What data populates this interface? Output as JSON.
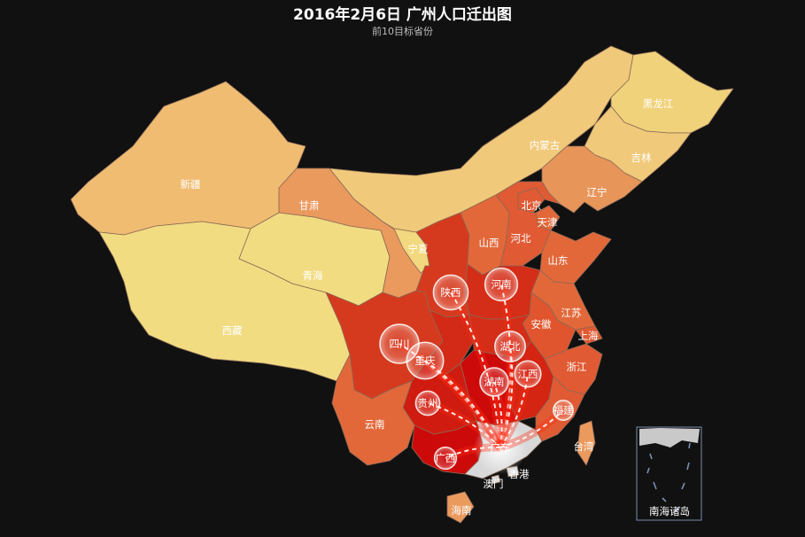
{
  "title": "2016年2月6日 广州人口迁出图",
  "subtitle": "前10目标省份",
  "origin": "广东",
  "colors": {
    "background": "#111111",
    "origin_fill": "#d8d8d8",
    "level_top": "#cc0a0a",
    "level_high": "#d63a1e",
    "level_mid": "#e2683a",
    "level_low": "#eb9a5e",
    "level_lower": "#f0bc72",
    "level_lowest": "#f2dc82"
  },
  "provinces": [
    {
      "id": "xinjiang",
      "name": "新疆",
      "color": "#f0bc72"
    },
    {
      "id": "xizang",
      "name": "西藏",
      "color": "#f2dc82"
    },
    {
      "id": "qinghai",
      "name": "青海",
      "color": "#f2dc82"
    },
    {
      "id": "gansu",
      "name": "甘肃",
      "color": "#eb9a5e"
    },
    {
      "id": "neimenggu",
      "name": "内蒙古",
      "color": "#f0c97a"
    },
    {
      "id": "heilongjiang",
      "name": "黑龙江",
      "color": "#f0d27a"
    },
    {
      "id": "jilin",
      "name": "吉林",
      "color": "#f0c97a"
    },
    {
      "id": "liaoning",
      "name": "辽宁",
      "color": "#e8955a"
    },
    {
      "id": "ningxia",
      "name": "宁夏",
      "color": "#f2d87e"
    },
    {
      "id": "shaanxi",
      "name": "陕西",
      "color": "#d63a1e"
    },
    {
      "id": "shanxi",
      "name": "山西",
      "color": "#e2683a"
    },
    {
      "id": "beijing",
      "name": "北京",
      "color": "#e05a34"
    },
    {
      "id": "tianjin",
      "name": "天津",
      "color": "#e2683a"
    },
    {
      "id": "hebei",
      "name": "河北",
      "color": "#e05a34"
    },
    {
      "id": "shandong",
      "name": "山东",
      "color": "#e2683a"
    },
    {
      "id": "henan",
      "name": "河南",
      "color": "#d42d18"
    },
    {
      "id": "jiangsu",
      "name": "江苏",
      "color": "#e2683a"
    },
    {
      "id": "shanghai",
      "name": "上海",
      "color": "#e05a34"
    },
    {
      "id": "anhui",
      "name": "安徽",
      "color": "#e0552e"
    },
    {
      "id": "sichuan",
      "name": "四川",
      "color": "#d63a1e"
    },
    {
      "id": "chongqing",
      "name": "重庆",
      "color": "#d22a16"
    },
    {
      "id": "hubei",
      "name": "湖北",
      "color": "#d42d18"
    },
    {
      "id": "zhejiang",
      "name": "浙江",
      "color": "#e05a34"
    },
    {
      "id": "jiangxi",
      "name": "江西",
      "color": "#d42412"
    },
    {
      "id": "hunan",
      "name": "湖南",
      "color": "#cc0a0a"
    },
    {
      "id": "guizhou",
      "name": "贵州",
      "color": "#d01c10"
    },
    {
      "id": "yunnan",
      "name": "云南",
      "color": "#e2683a"
    },
    {
      "id": "fujian",
      "name": "福建",
      "color": "#e05a34"
    },
    {
      "id": "guangxi",
      "name": "广西",
      "color": "#cc0a0a"
    },
    {
      "id": "guangdong",
      "name": "广东",
      "color": "#d8d8d8"
    },
    {
      "id": "hainan",
      "name": "海南",
      "color": "#eb9a5e"
    },
    {
      "id": "taiwan",
      "name": "台湾",
      "color": "#eb9a5e"
    },
    {
      "id": "hongkong",
      "name": "香港",
      "color": "#d8d8d8"
    },
    {
      "id": "macau",
      "name": "澳门",
      "color": "#d8d8d8"
    }
  ],
  "targets": [
    "四川",
    "重庆",
    "陕西",
    "河南",
    "湖北",
    "湖南",
    "江西",
    "贵州",
    "广西",
    "福建"
  ],
  "inset": {
    "label": "南海诸岛"
  }
}
